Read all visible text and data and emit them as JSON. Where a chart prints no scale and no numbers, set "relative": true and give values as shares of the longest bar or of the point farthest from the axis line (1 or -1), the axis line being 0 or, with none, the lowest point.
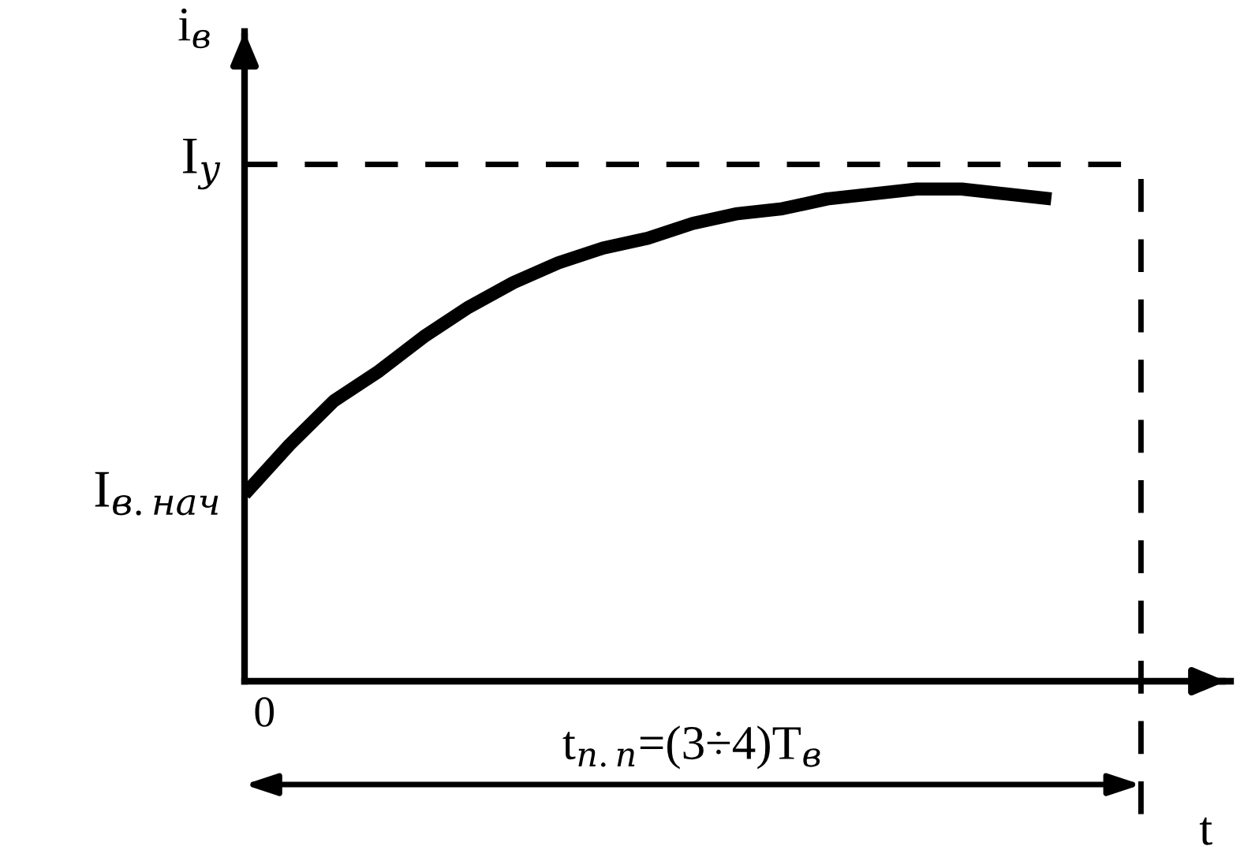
{
  "chart_data": {
    "type": "line",
    "relative": true,
    "ylabel": "i$_{в}$",
    "xlabel": "t",
    "categories": [
      null,
      null,
      null,
      null,
      null,
      null,
      null,
      null,
      null,
      null,
      null,
      null,
      null,
      null,
      null,
      null,
      null,
      null,
      null,
      null,
      null
    ],
    "series": [
      {
        "color": "#000000",
        "values": [
          0.38,
          0.48,
          0.57,
          0.63,
          0.7,
          0.76,
          0.81,
          0.85,
          0.88,
          0.9,
          0.93,
          0.95,
          0.96,
          0.98,
          0.99,
          1.0,
          1.0,
          0.99,
          0.98,
          null,
          null
        ]
      }
    ],
    "ref_lines": [
      {
        "axis": "y",
        "value": 1.05,
        "label": "I$_{у}$",
        "color": "#000000",
        "line_style": "dashed"
      }
    ],
    "annotations": [
      "I$_{в.нач}$",
      "0",
      "t$_{п.п}$=(3÷4)T$_{в}$"
    ],
    "grid": false,
    "legend": false,
    "marker": "none",
    "line_style": "solid"
  }
}
